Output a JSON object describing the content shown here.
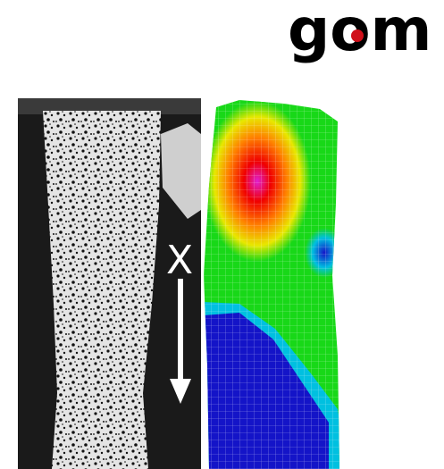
{
  "logo": {
    "wordmark": "gom",
    "icon": "gom-logo-icon",
    "colors": {
      "text": "#000000",
      "dot": "#d0101a"
    }
  },
  "specimen": {
    "axis_label": "X",
    "arrow_icon": "arrow-down-icon",
    "photo_colors": {
      "background": "#1a1a1a",
      "speckle": "#e6e6e6",
      "grip": "#cfcfcf"
    }
  },
  "strain_map": {
    "palette": [
      "#1414c8",
      "#00c0e0",
      "#18d818",
      "#e8e800",
      "#ff8000",
      "#f00000",
      "#e020d0"
    ]
  }
}
